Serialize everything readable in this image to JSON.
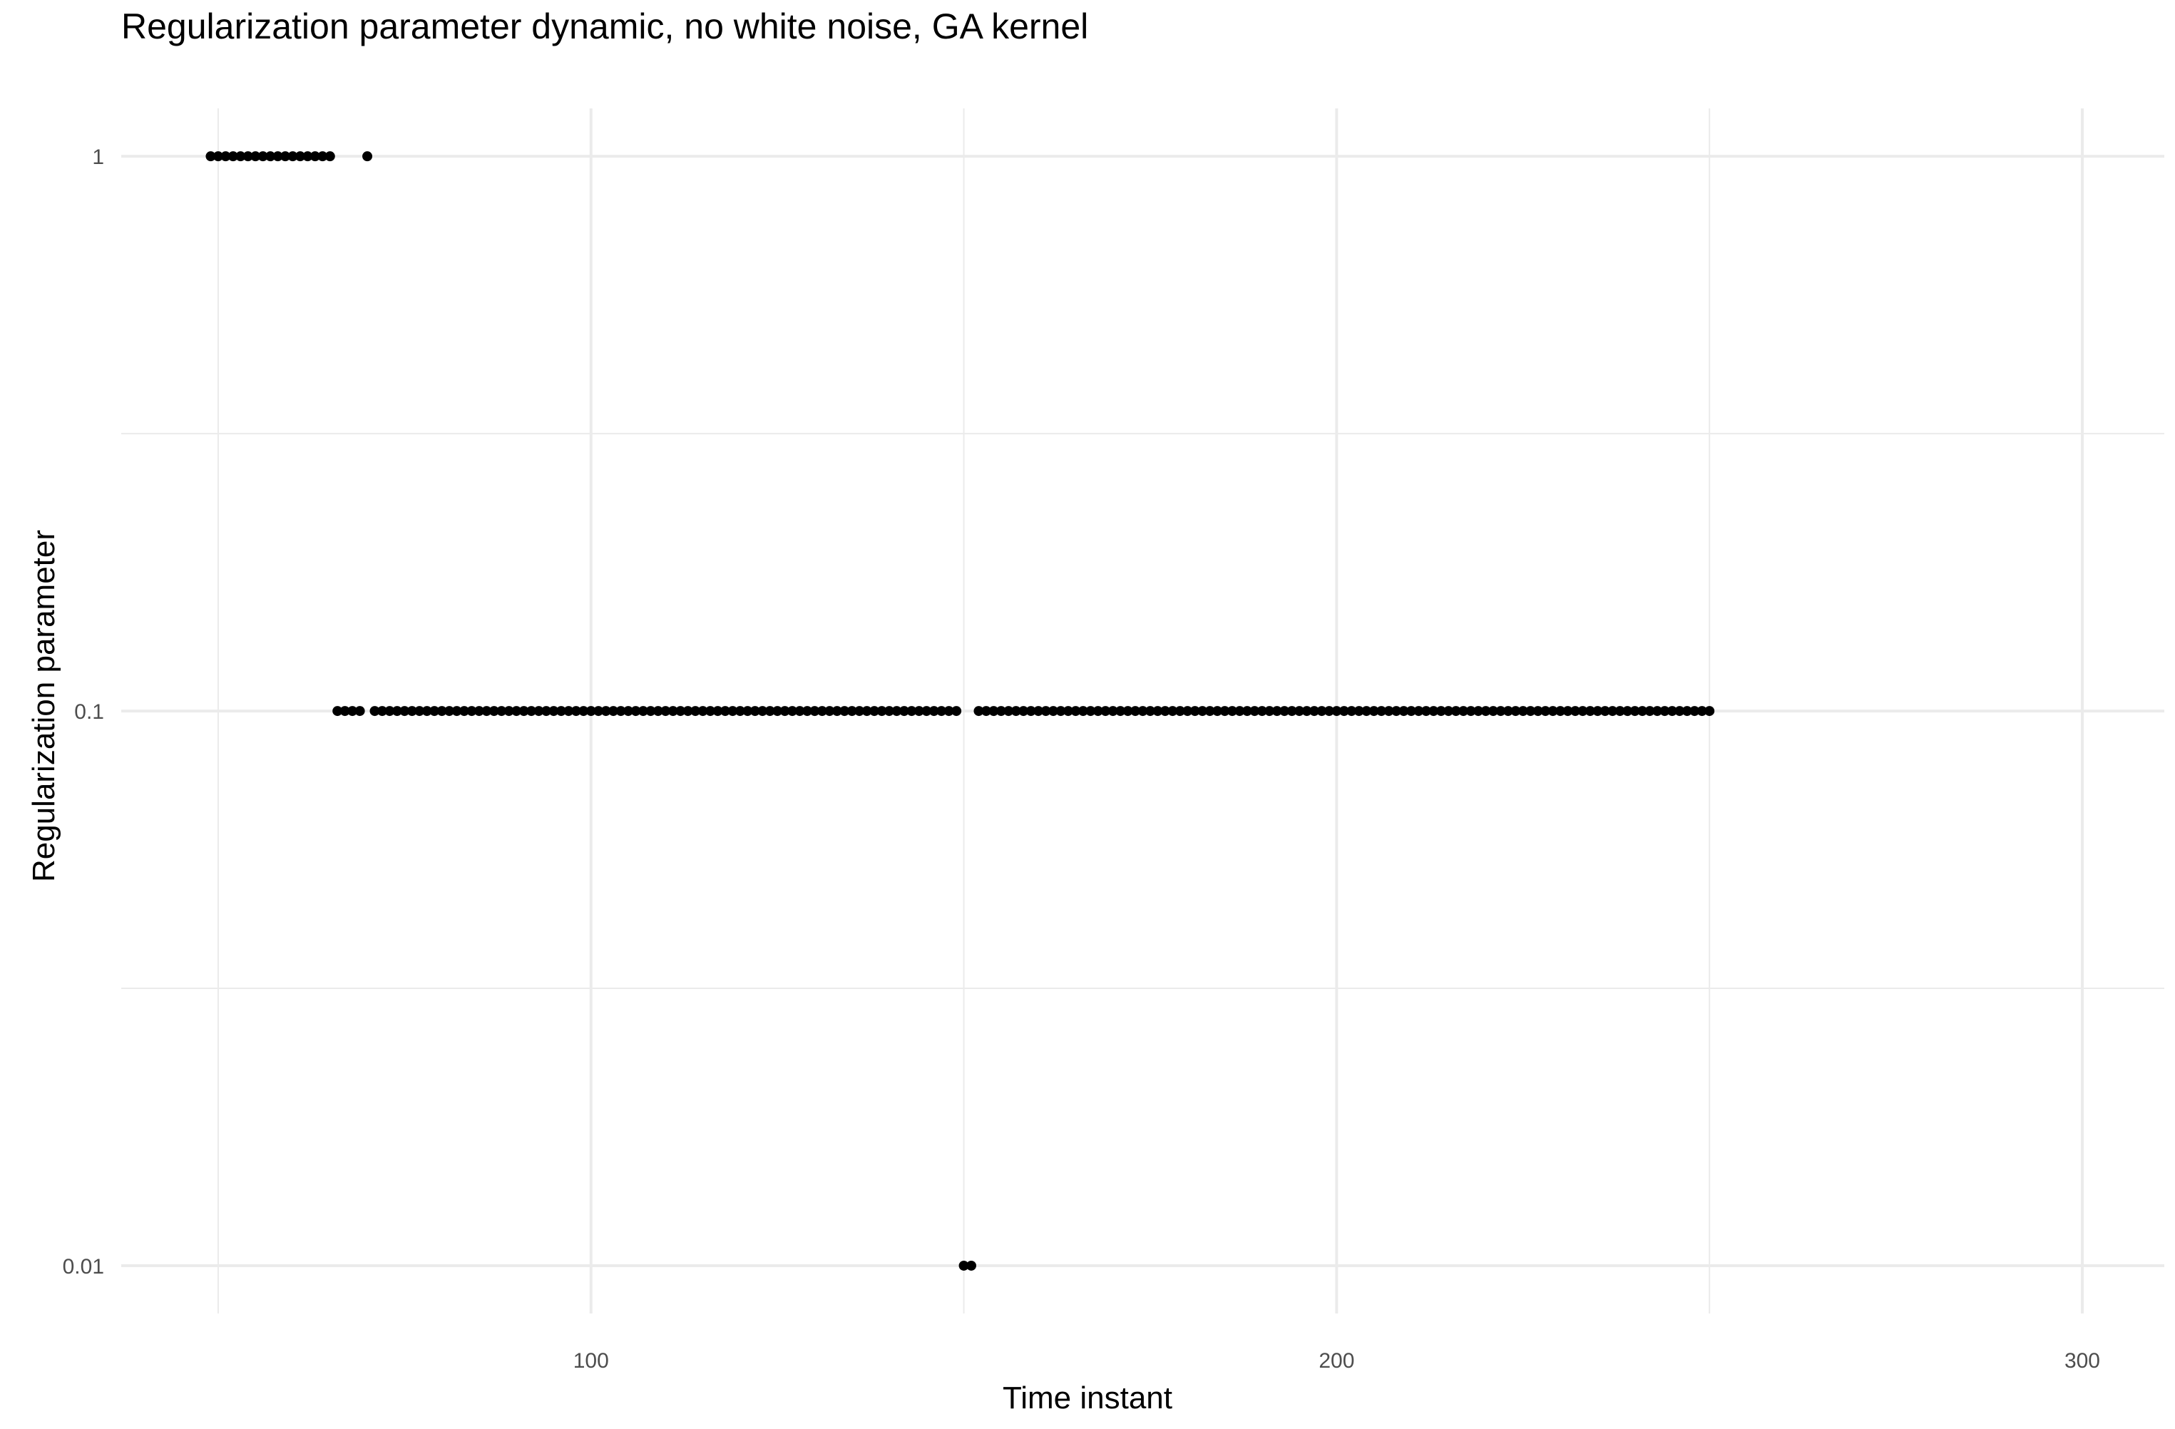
{
  "chart_data": {
    "type": "scatter",
    "title": "Regularization parameter dynamic, no white noise, GA kernel",
    "xlabel": "Time instant",
    "ylabel": "Regularization parameter",
    "x_ticks": [
      100,
      200,
      300
    ],
    "y_ticks": [
      0.01,
      0.1,
      1
    ],
    "y_tick_labels": [
      "0.01",
      "0.1",
      "1"
    ],
    "y_scale": "log10",
    "xlim": [
      37,
      311
    ],
    "ylim": [
      0.0082,
      1.22
    ],
    "grid": true,
    "legend": "none",
    "point_color": "#000000",
    "grid_color": "#ebebeb",
    "series": [
      {
        "x": [
          49,
          50,
          51,
          52,
          53,
          54,
          55,
          56,
          57,
          58,
          59,
          60,
          61,
          62,
          63,
          64,
          65,
          70
        ],
        "y": 1
      },
      {
        "x": [
          66,
          67,
          68,
          69
        ],
        "y": 0.1
      },
      {
        "x_range": [
          71,
          149
        ],
        "y": 0.1
      },
      {
        "x": [
          150,
          151
        ],
        "y": 0.01
      },
      {
        "x_range": [
          152,
          250
        ],
        "y": 0.1
      }
    ]
  }
}
